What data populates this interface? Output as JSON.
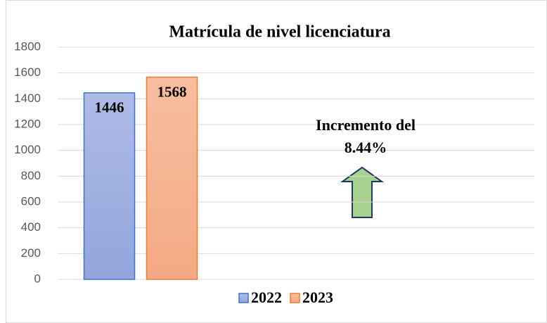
{
  "chart_data": {
    "type": "bar",
    "title": "Matrícula de nivel licenciatura",
    "categories": [
      null
    ],
    "series": [
      {
        "name": "2022",
        "color": "#4472c4",
        "values": [
          1446
        ]
      },
      {
        "name": "2023",
        "color": "#ed7d31",
        "values": [
          1568
        ]
      }
    ],
    "ylim": [
      0,
      1800
    ],
    "yticks": [
      0,
      200,
      400,
      600,
      800,
      1000,
      1200,
      1400,
      1600,
      1800
    ],
    "grid": true,
    "legend": "bottom",
    "annotation": [
      "Incremento del",
      "8.44%"
    ]
  }
}
